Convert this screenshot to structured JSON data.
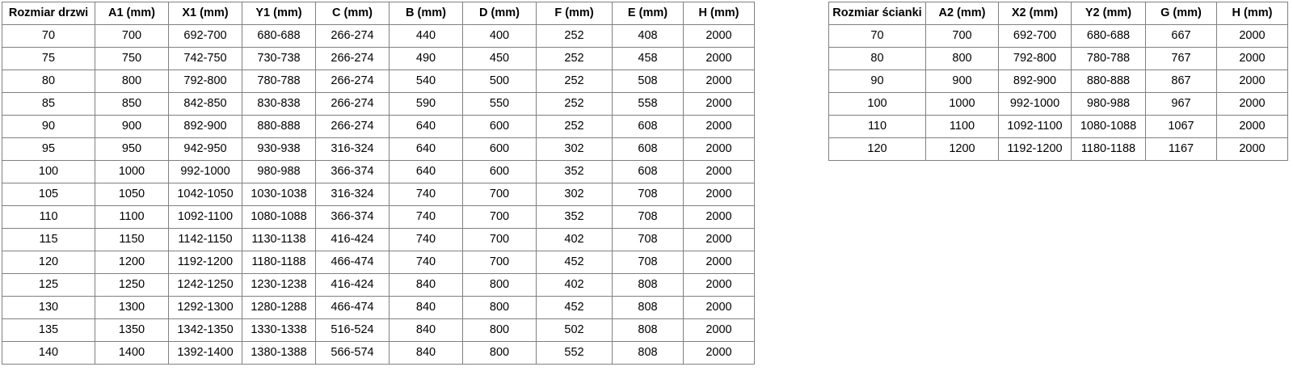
{
  "page": {
    "background_color": "#ffffff",
    "table_border_color": "#808080",
    "text_color": "#000000"
  },
  "door_table": {
    "columns": [
      "Rozmiar drzwi",
      "A1 (mm)",
      "X1 (mm)",
      "Y1 (mm)",
      "C (mm)",
      "B (mm)",
      "D (mm)",
      "F (mm)",
      "E (mm)",
      "H (mm)"
    ],
    "rows": [
      [
        "70",
        "700",
        "692-700",
        "680-688",
        "266-274",
        "440",
        "400",
        "252",
        "408",
        "2000"
      ],
      [
        "75",
        "750",
        "742-750",
        "730-738",
        "266-274",
        "490",
        "450",
        "252",
        "458",
        "2000"
      ],
      [
        "80",
        "800",
        "792-800",
        "780-788",
        "266-274",
        "540",
        "500",
        "252",
        "508",
        "2000"
      ],
      [
        "85",
        "850",
        "842-850",
        "830-838",
        "266-274",
        "590",
        "550",
        "252",
        "558",
        "2000"
      ],
      [
        "90",
        "900",
        "892-900",
        "880-888",
        "266-274",
        "640",
        "600",
        "252",
        "608",
        "2000"
      ],
      [
        "95",
        "950",
        "942-950",
        "930-938",
        "316-324",
        "640",
        "600",
        "302",
        "608",
        "2000"
      ],
      [
        "100",
        "1000",
        "992-1000",
        "980-988",
        "366-374",
        "640",
        "600",
        "352",
        "608",
        "2000"
      ],
      [
        "105",
        "1050",
        "1042-1050",
        "1030-1038",
        "316-324",
        "740",
        "700",
        "302",
        "708",
        "2000"
      ],
      [
        "110",
        "1100",
        "1092-1100",
        "1080-1088",
        "366-374",
        "740",
        "700",
        "352",
        "708",
        "2000"
      ],
      [
        "115",
        "1150",
        "1142-1150",
        "1130-1138",
        "416-424",
        "740",
        "700",
        "402",
        "708",
        "2000"
      ],
      [
        "120",
        "1200",
        "1192-1200",
        "1180-1188",
        "466-474",
        "740",
        "700",
        "452",
        "708",
        "2000"
      ],
      [
        "125",
        "1250",
        "1242-1250",
        "1230-1238",
        "416-424",
        "840",
        "800",
        "402",
        "808",
        "2000"
      ],
      [
        "130",
        "1300",
        "1292-1300",
        "1280-1288",
        "466-474",
        "840",
        "800",
        "452",
        "808",
        "2000"
      ],
      [
        "135",
        "1350",
        "1342-1350",
        "1330-1338",
        "516-524",
        "840",
        "800",
        "502",
        "808",
        "2000"
      ],
      [
        "140",
        "1400",
        "1392-1400",
        "1380-1388",
        "566-574",
        "840",
        "800",
        "552",
        "808",
        "2000"
      ]
    ]
  },
  "wall_table": {
    "columns": [
      "Rozmiar ścianki",
      "A2 (mm)",
      "X2 (mm)",
      "Y2 (mm)",
      "G (mm)",
      "H (mm)"
    ],
    "rows": [
      [
        "70",
        "700",
        "692-700",
        "680-688",
        "667",
        "2000"
      ],
      [
        "80",
        "800",
        "792-800",
        "780-788",
        "767",
        "2000"
      ],
      [
        "90",
        "900",
        "892-900",
        "880-888",
        "867",
        "2000"
      ],
      [
        "100",
        "1000",
        "992-1000",
        "980-988",
        "967",
        "2000"
      ],
      [
        "110",
        "1100",
        "1092-1100",
        "1080-1088",
        "1067",
        "2000"
      ],
      [
        "120",
        "1200",
        "1192-1200",
        "1180-1188",
        "1167",
        "2000"
      ]
    ]
  }
}
